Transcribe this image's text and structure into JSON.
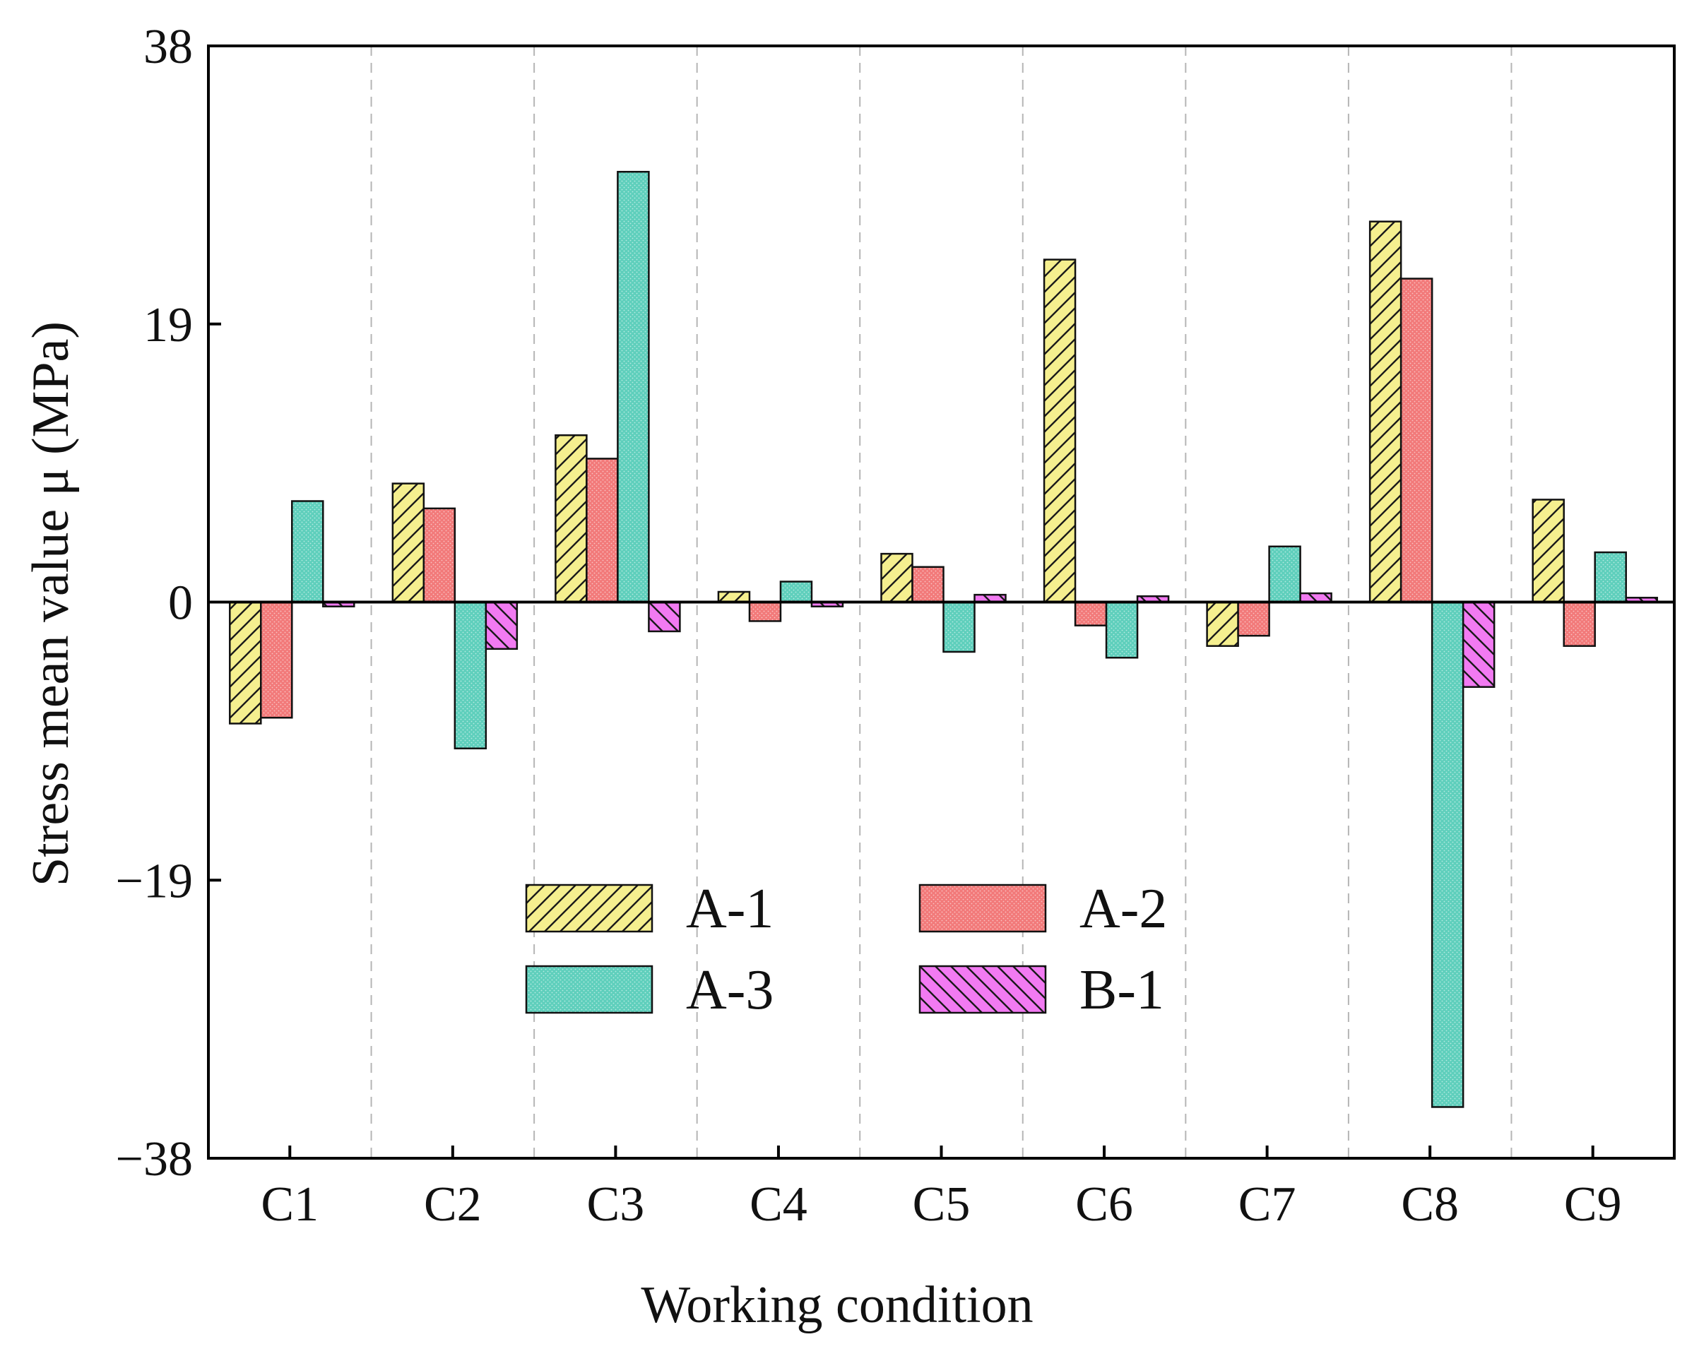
{
  "chart_data": {
    "type": "bar",
    "title": "",
    "xlabel": "Working condition",
    "ylabel": "Stress mean value μ (MPa)",
    "ylim": [
      -38,
      38
    ],
    "yticks": [
      -38,
      -19,
      0,
      19,
      38
    ],
    "ytick_labels": [
      "−38",
      "−19",
      "0",
      "19",
      "38"
    ],
    "categories": [
      "C1",
      "C2",
      "C3",
      "C4",
      "C5",
      "C6",
      "C7",
      "C8",
      "C9"
    ],
    "series": [
      {
        "name": "A-1",
        "color": "#f5ef8f",
        "pattern": "hatch-forward",
        "values": [
          -8.3,
          8.1,
          11.4,
          0.7,
          3.3,
          23.4,
          -3.0,
          26.0,
          7.0
        ]
      },
      {
        "name": "A-2",
        "color": "#f27a7a",
        "pattern": "dots",
        "values": [
          -7.9,
          6.4,
          9.8,
          -1.3,
          2.4,
          -1.6,
          -2.3,
          22.1,
          -3.0
        ]
      },
      {
        "name": "A-3",
        "color": "#5fcfbc",
        "pattern": "dots",
        "values": [
          6.9,
          -10.0,
          29.4,
          1.4,
          -3.4,
          -3.8,
          3.8,
          -34.5,
          3.4
        ]
      },
      {
        "name": "B-1",
        "color": "#f27af2",
        "pattern": "hatch-back",
        "values": [
          -0.3,
          -3.2,
          -2.0,
          -0.3,
          0.5,
          0.4,
          0.6,
          -5.8,
          0.3
        ]
      }
    ],
    "grid": "vertical dashed separators between categories",
    "legend": {
      "placement": "lower-center",
      "columns": 2
    }
  }
}
